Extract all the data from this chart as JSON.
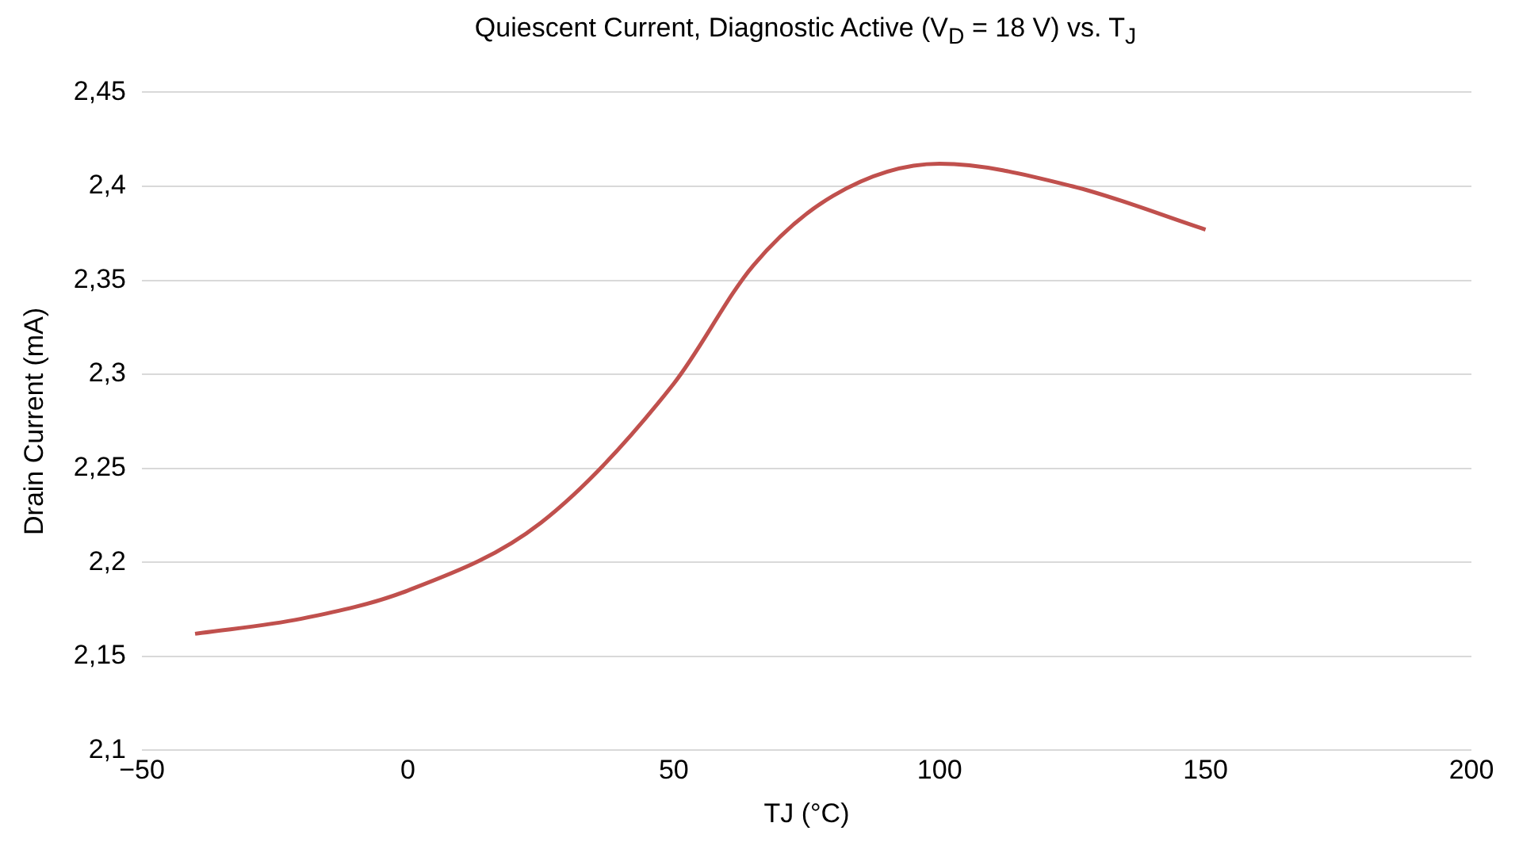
{
  "chart_data": {
    "type": "line",
    "title": "Quiescent Current, Diagnostic Active (V$_{D}$ = 18 V) vs. T$_{J}$",
    "xlabel": "TJ (°C)",
    "ylabel": "Drain Current (mA)",
    "x": [
      -40,
      -20,
      0,
      25,
      50,
      65,
      80,
      100,
      125,
      150
    ],
    "series": [
      {
        "color": "#c0504d",
        "values": [
          2.162,
          2.17,
          2.185,
          2.221,
          2.295,
          2.358,
          2.395,
          2.412,
          2.4,
          2.377
        ]
      }
    ],
    "xlim": [
      -50,
      200
    ],
    "xticks": [
      {
        "value": -50,
        "label": "−50"
      },
      0,
      50,
      100,
      150,
      200
    ],
    "ylim": [
      2.1,
      2.45
    ],
    "yticks": [
      {
        "value": 2.1,
        "label": "2,1"
      },
      {
        "value": 2.15,
        "label": "2,15"
      },
      {
        "value": 2.2,
        "label": "2,2"
      },
      {
        "value": 2.25,
        "label": "2,25"
      },
      {
        "value": 2.3,
        "label": "2,3"
      },
      {
        "value": 2.35,
        "label": "2,35"
      },
      {
        "value": 2.4,
        "label": "2,4"
      },
      {
        "value": 2.45,
        "label": "2,45"
      }
    ],
    "grid": "y",
    "legend": false,
    "marker": "none",
    "line_style": "solid"
  }
}
